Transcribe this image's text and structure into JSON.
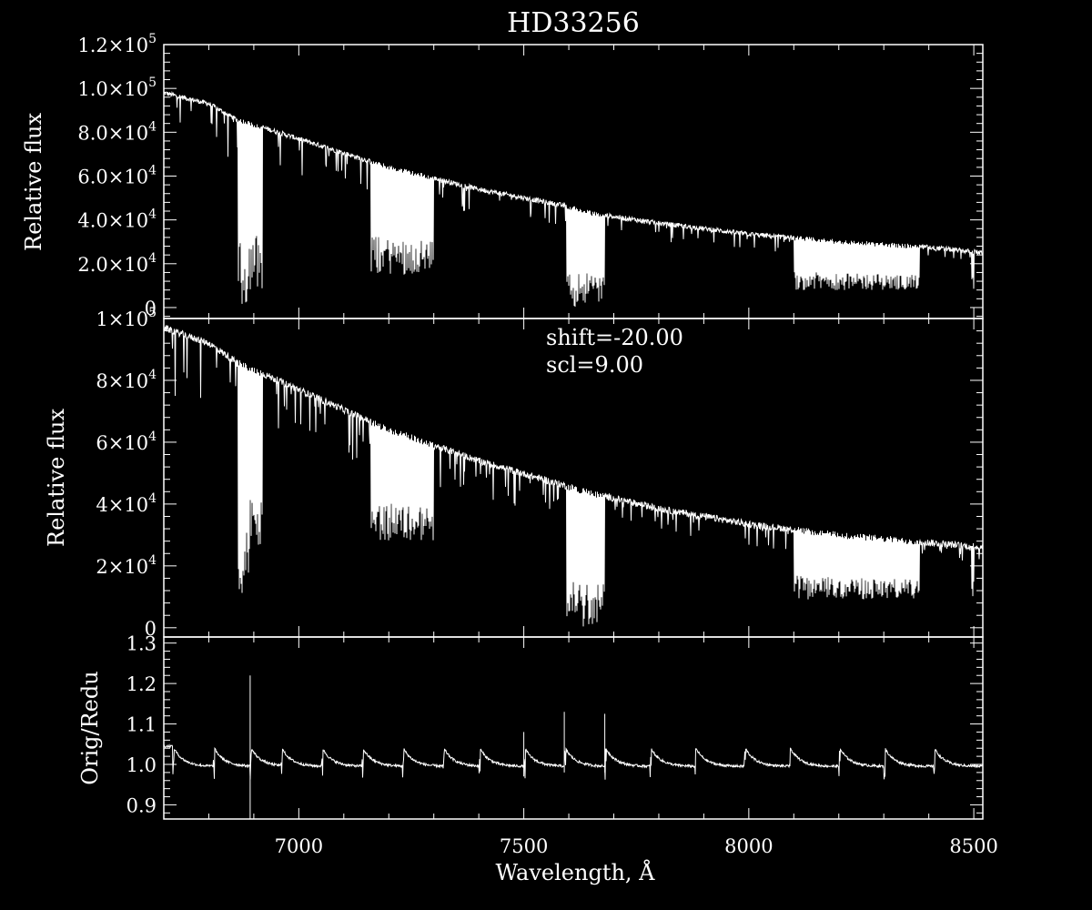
{
  "chart_data": [
    {
      "type": "line",
      "title": "HD33256",
      "xlabel": "",
      "ylabel": "Relative flux",
      "xlim": [
        6700,
        8520
      ],
      "ylim": [
        -5000,
        120000
      ],
      "x_ticks": [
        7000,
        7500,
        8000,
        8500
      ],
      "y_ticks": [
        {
          "value": 0,
          "label": "0"
        },
        {
          "value": 20000,
          "label": "2.0×10",
          "exp": "4"
        },
        {
          "value": 40000,
          "label": "4.0×10",
          "exp": "4"
        },
        {
          "value": 60000,
          "label": "6.0×10",
          "exp": "4"
        },
        {
          "value": 80000,
          "label": "8.0×10",
          "exp": "4"
        },
        {
          "value": 100000,
          "label": "1.0×10",
          "exp": "5"
        },
        {
          "value": 120000,
          "label": "1.2×10",
          "exp": "5"
        }
      ],
      "series": [
        {
          "color": "#ffffff",
          "continuum": [
            [
              6700,
              98000
            ],
            [
              6800,
              93000
            ],
            [
              6860,
              86000
            ],
            [
              7000,
              77000
            ],
            [
              7200,
              64000
            ],
            [
              7400,
              54000
            ],
            [
              7590,
              46500
            ],
            [
              7650,
              43000
            ],
            [
              7800,
              38500
            ],
            [
              8000,
              33500
            ],
            [
              8200,
              30000
            ],
            [
              8400,
              27500
            ],
            [
              8520,
              25000
            ]
          ],
          "absorption_bands": [
            {
              "range": [
                6865,
                6890
              ],
              "depth": 0
            },
            {
              "range": [
                6890,
                6920
              ],
              "depth": 8000
            },
            {
              "range": [
                7160,
                7300
              ],
              "depth": 15000
            },
            {
              "range": [
                7595,
                7620
              ],
              "depth": 0
            },
            {
              "range": [
                7620,
                7680
              ],
              "depth": 2000
            },
            {
              "range": [
                8100,
                8380
              ],
              "depth": 8000
            },
            {
              "range": [
                8495,
                8500
              ],
              "depth": 8000
            }
          ]
        }
      ]
    },
    {
      "type": "line",
      "title": "",
      "xlabel": "",
      "ylabel": "Relative flux",
      "xlim": [
        6700,
        8520
      ],
      "ylim": [
        -3000,
        100000
      ],
      "x_ticks": [
        7000,
        7500,
        8000,
        8500
      ],
      "y_ticks": [
        {
          "value": 0,
          "label": "0"
        },
        {
          "value": 20000,
          "label": "2×10",
          "exp": "4"
        },
        {
          "value": 40000,
          "label": "4×10",
          "exp": "4"
        },
        {
          "value": 60000,
          "label": "6×10",
          "exp": "4"
        },
        {
          "value": 80000,
          "label": "8×10",
          "exp": "4"
        },
        {
          "value": 100000,
          "label": "1×10",
          "exp": "5"
        }
      ],
      "annotations": [
        "shift=-20.00",
        "scl=9.00"
      ],
      "series": [
        {
          "color": "#ffffff",
          "continuum": [
            [
              6700,
              97000
            ],
            [
              6800,
              92000
            ],
            [
              6860,
              86000
            ],
            [
              7000,
              77000
            ],
            [
              7200,
              64000
            ],
            [
              7400,
              54000
            ],
            [
              7590,
              46000
            ],
            [
              7650,
              43500
            ],
            [
              7800,
              38500
            ],
            [
              8000,
              33500
            ],
            [
              8200,
              30000
            ],
            [
              8400,
              27500
            ],
            [
              8520,
              26000
            ]
          ],
          "absorption_bands": [
            {
              "range": [
                6865,
                6890
              ],
              "depth": 8000
            },
            {
              "range": [
                6890,
                6920
              ],
              "depth": 22000
            },
            {
              "range": [
                7160,
                7300
              ],
              "depth": 28000
            },
            {
              "range": [
                7595,
                7620
              ],
              "depth": 0
            },
            {
              "range": [
                7620,
                7680
              ],
              "depth": 0
            },
            {
              "range": [
                8100,
                8380
              ],
              "depth": 9000
            },
            {
              "range": [
                8495,
                8500
              ],
              "depth": 10000
            }
          ]
        }
      ]
    },
    {
      "type": "line",
      "title": "",
      "xlabel": "Wavelength, Å",
      "ylabel": "Orig/Redu",
      "xlim": [
        6700,
        8520
      ],
      "ylim": [
        0.865,
        1.315
      ],
      "x_ticks": [
        7000,
        7500,
        8000,
        8500
      ],
      "y_ticks": [
        {
          "value": 0.9,
          "label": "0.9"
        },
        {
          "value": 1.0,
          "label": "1.0"
        },
        {
          "value": 1.1,
          "label": "1.1"
        },
        {
          "value": 1.2,
          "label": "1.2"
        },
        {
          "value": 1.3,
          "label": "1.3"
        }
      ],
      "series": [
        {
          "color": "#ffffff",
          "baseline": 1.0,
          "order_edges": [
            6720,
            6810,
            6892,
            6960,
            7050,
            7140,
            7230,
            7320,
            7400,
            7500,
            7590,
            7680,
            7780,
            7880,
            7990,
            8090,
            8200,
            8300,
            8410
          ],
          "spikes": [
            {
              "x": 6892,
              "top": 1.22,
              "bottom": 0.865
            },
            {
              "x": 7500,
              "top": 1.08,
              "bottom": 0.97
            },
            {
              "x": 7590,
              "top": 1.13,
              "bottom": 0.98
            },
            {
              "x": 7680,
              "top": 1.125,
              "bottom": 0.98
            }
          ]
        }
      ]
    }
  ]
}
